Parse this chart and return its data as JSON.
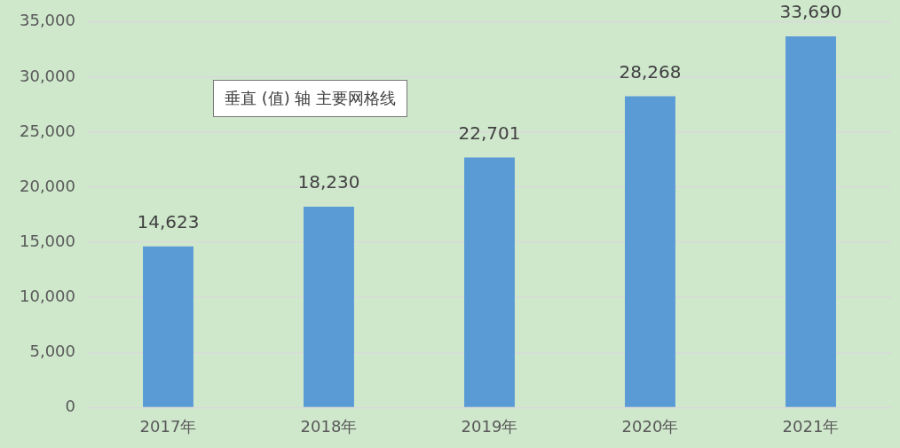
{
  "chart_data": {
    "type": "bar",
    "categories": [
      "2017年",
      "2018年",
      "2019年",
      "2020年",
      "2021年"
    ],
    "values": [
      14623,
      18230,
      22701,
      28268,
      33690
    ],
    "color": "#5b9bd5",
    "value_labels": [
      "14,623",
      "18,230",
      "22,701",
      "28,268",
      "33,690"
    ],
    "ylim": [
      0,
      35000
    ],
    "yticks": [
      0,
      {
        "value": 5000,
        "label": "5,000"
      },
      {
        "value": 10000,
        "label": "10,000"
      },
      {
        "value": 15000,
        "label": "15,000"
      },
      {
        "value": 20000,
        "label": "20,000"
      },
      {
        "value": 25000,
        "label": "25,000"
      },
      {
        "value": 30000,
        "label": "30,000"
      },
      {
        "value": 35000,
        "label": "35,000"
      }
    ],
    "grid": "y",
    "legend": false,
    "annotations": [
      "垂直 (值) 轴 主要网格线"
    ]
  }
}
